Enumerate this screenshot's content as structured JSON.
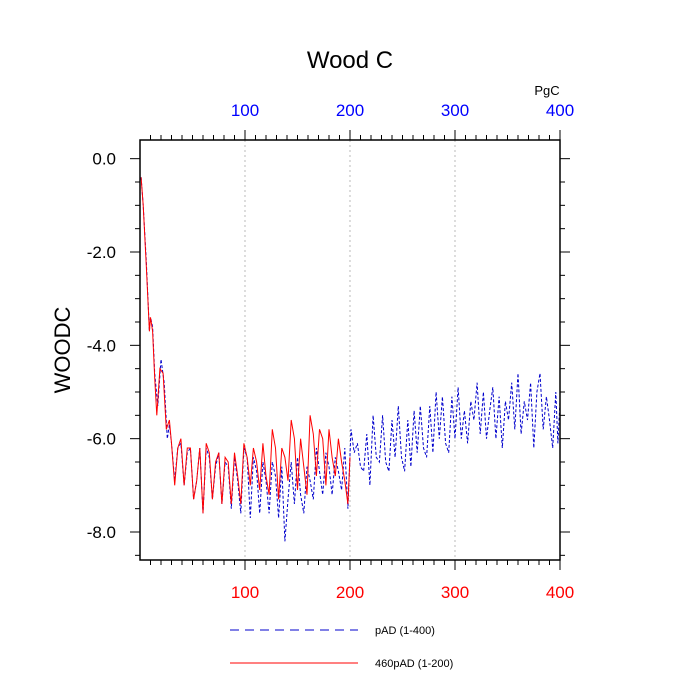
{
  "chart_data": {
    "type": "line",
    "title": "Wood C",
    "ylabel": "WOODC",
    "x_unit_label": "PgC",
    "xlim": [
      0,
      400
    ],
    "ylim": [
      -8.6,
      0.4
    ],
    "x_ticks": [
      100,
      200,
      300,
      400
    ],
    "y_ticks": [
      0.0,
      -2.0,
      -4.0,
      -6.0,
      -8.0
    ],
    "y_tick_labels": [
      "0.0",
      "-2.0",
      "-4.0",
      "-6.0",
      "-8.0"
    ],
    "top_tick_color": "#0000ff",
    "bottom_tick_color": "#ff0000",
    "grid": "vertical-dotted",
    "series": [
      {
        "name": "pAD (1-400)",
        "color": "#0000cc",
        "style": "dashed",
        "points": [
          [
            1,
            -0.4
          ],
          [
            3,
            -1.0
          ],
          [
            6,
            -2.2
          ],
          [
            9,
            -3.7
          ],
          [
            10,
            -3.4
          ],
          [
            12,
            -3.6
          ],
          [
            14,
            -4.6
          ],
          [
            17,
            -5.3
          ],
          [
            20,
            -4.3
          ],
          [
            23,
            -4.8
          ],
          [
            26,
            -6.0
          ],
          [
            28,
            -5.7
          ],
          [
            30,
            -6.1
          ],
          [
            33,
            -6.9
          ],
          [
            36,
            -6.2
          ],
          [
            39,
            -6.1
          ],
          [
            42,
            -7.0
          ],
          [
            45,
            -6.3
          ],
          [
            48,
            -6.2
          ],
          [
            51,
            -7.3
          ],
          [
            54,
            -6.9
          ],
          [
            57,
            -6.2
          ],
          [
            60,
            -7.6
          ],
          [
            63,
            -6.2
          ],
          [
            66,
            -6.4
          ],
          [
            69,
            -7.3
          ],
          [
            72,
            -6.6
          ],
          [
            75,
            -6.3
          ],
          [
            78,
            -7.4
          ],
          [
            81,
            -6.5
          ],
          [
            84,
            -6.6
          ],
          [
            87,
            -7.5
          ],
          [
            90,
            -6.4
          ],
          [
            93,
            -6.9
          ],
          [
            96,
            -7.6
          ],
          [
            99,
            -6.2
          ],
          [
            102,
            -6.4
          ],
          [
            105,
            -7.7
          ],
          [
            108,
            -6.4
          ],
          [
            111,
            -6.7
          ],
          [
            114,
            -7.6
          ],
          [
            117,
            -6.5
          ],
          [
            120,
            -6.9
          ],
          [
            123,
            -7.6
          ],
          [
            126,
            -6.5
          ],
          [
            129,
            -6.8
          ],
          [
            132,
            -7.7
          ],
          [
            135,
            -6.6
          ],
          [
            138,
            -8.2
          ],
          [
            141,
            -7.3
          ],
          [
            144,
            -6.5
          ],
          [
            147,
            -7.4
          ],
          [
            150,
            -6.4
          ],
          [
            153,
            -7.2
          ],
          [
            156,
            -7.6
          ],
          [
            159,
            -6.6
          ],
          [
            162,
            -6.9
          ],
          [
            165,
            -7.3
          ],
          [
            168,
            -6.2
          ],
          [
            171,
            -6.7
          ],
          [
            174,
            -7.2
          ],
          [
            177,
            -6.3
          ],
          [
            180,
            -6.6
          ],
          [
            183,
            -7.2
          ],
          [
            186,
            -6.4
          ],
          [
            189,
            -6.7
          ],
          [
            192,
            -7.1
          ],
          [
            195,
            -6.2
          ],
          [
            198,
            -7.5
          ],
          [
            201,
            -5.8
          ],
          [
            204,
            -6.3
          ],
          [
            207,
            -6.1
          ],
          [
            210,
            -6.6
          ],
          [
            213,
            -6.7
          ],
          [
            216,
            -5.9
          ],
          [
            219,
            -7.0
          ],
          [
            222,
            -5.5
          ],
          [
            225,
            -6.4
          ],
          [
            228,
            -6.5
          ],
          [
            231,
            -5.5
          ],
          [
            234,
            -6.5
          ],
          [
            237,
            -6.7
          ],
          [
            240,
            -5.6
          ],
          [
            243,
            -6.4
          ],
          [
            246,
            -5.3
          ],
          [
            249,
            -6.4
          ],
          [
            252,
            -6.7
          ],
          [
            255,
            -5.6
          ],
          [
            258,
            -6.6
          ],
          [
            261,
            -5.4
          ],
          [
            264,
            -6.3
          ],
          [
            267,
            -5.3
          ],
          [
            270,
            -6.2
          ],
          [
            273,
            -6.4
          ],
          [
            276,
            -5.3
          ],
          [
            279,
            -6.3
          ],
          [
            282,
            -5.0
          ],
          [
            285,
            -6.0
          ],
          [
            288,
            -5.1
          ],
          [
            291,
            -6.1
          ],
          [
            294,
            -6.3
          ],
          [
            297,
            -5.1
          ],
          [
            300,
            -6.0
          ],
          [
            303,
            -4.9
          ],
          [
            306,
            -6.0
          ],
          [
            309,
            -5.4
          ],
          [
            312,
            -6.1
          ],
          [
            315,
            -5.2
          ],
          [
            318,
            -5.6
          ],
          [
            321,
            -4.8
          ],
          [
            324,
            -5.9
          ],
          [
            327,
            -5.0
          ],
          [
            330,
            -6.0
          ],
          [
            333,
            -5.4
          ],
          [
            336,
            -4.9
          ],
          [
            339,
            -6.0
          ],
          [
            342,
            -5.1
          ],
          [
            345,
            -6.2
          ],
          [
            348,
            -5.2
          ],
          [
            351,
            -5.6
          ],
          [
            354,
            -4.8
          ],
          [
            357,
            -5.8
          ],
          [
            360,
            -4.6
          ],
          [
            363,
            -5.9
          ],
          [
            366,
            -5.2
          ],
          [
            369,
            -5.6
          ],
          [
            372,
            -4.8
          ],
          [
            375,
            -6.2
          ],
          [
            378,
            -5.0
          ],
          [
            381,
            -4.6
          ],
          [
            384,
            -5.8
          ],
          [
            387,
            -5.1
          ],
          [
            390,
            -5.6
          ],
          [
            393,
            -6.2
          ],
          [
            396,
            -5.0
          ],
          [
            398,
            -6.1
          ],
          [
            400,
            -5.2
          ]
        ]
      },
      {
        "name": "460pAD (1-200)",
        "color": "#ff0000",
        "style": "solid",
        "points": [
          [
            1,
            -0.4
          ],
          [
            3,
            -1.0
          ],
          [
            6,
            -2.3
          ],
          [
            9,
            -3.7
          ],
          [
            10,
            -3.4
          ],
          [
            12,
            -3.7
          ],
          [
            14,
            -4.7
          ],
          [
            16,
            -5.5
          ],
          [
            19,
            -4.5
          ],
          [
            22,
            -4.6
          ],
          [
            25,
            -5.8
          ],
          [
            28,
            -5.6
          ],
          [
            30,
            -6.1
          ],
          [
            33,
            -7.0
          ],
          [
            36,
            -6.2
          ],
          [
            39,
            -6.0
          ],
          [
            42,
            -7.0
          ],
          [
            45,
            -6.2
          ],
          [
            48,
            -6.2
          ],
          [
            51,
            -7.3
          ],
          [
            54,
            -6.9
          ],
          [
            57,
            -6.2
          ],
          [
            60,
            -7.6
          ],
          [
            63,
            -6.1
          ],
          [
            66,
            -6.3
          ],
          [
            69,
            -7.3
          ],
          [
            72,
            -6.5
          ],
          [
            75,
            -6.3
          ],
          [
            78,
            -7.4
          ],
          [
            81,
            -6.4
          ],
          [
            84,
            -6.5
          ],
          [
            87,
            -7.4
          ],
          [
            90,
            -6.3
          ],
          [
            93,
            -6.8
          ],
          [
            96,
            -7.4
          ],
          [
            99,
            -6.1
          ],
          [
            102,
            -6.4
          ],
          [
            105,
            -7.0
          ],
          [
            108,
            -6.2
          ],
          [
            111,
            -6.5
          ],
          [
            114,
            -7.1
          ],
          [
            117,
            -6.1
          ],
          [
            120,
            -6.8
          ],
          [
            123,
            -7.2
          ],
          [
            126,
            -5.8
          ],
          [
            129,
            -6.2
          ],
          [
            132,
            -7.3
          ],
          [
            135,
            -6.2
          ],
          [
            138,
            -6.4
          ],
          [
            141,
            -6.9
          ],
          [
            144,
            -5.6
          ],
          [
            147,
            -6.0
          ],
          [
            150,
            -7.1
          ],
          [
            153,
            -6.0
          ],
          [
            156,
            -6.6
          ],
          [
            159,
            -7.2
          ],
          [
            162,
            -5.5
          ],
          [
            165,
            -5.9
          ],
          [
            168,
            -6.8
          ],
          [
            171,
            -5.8
          ],
          [
            174,
            -6.0
          ],
          [
            177,
            -7.0
          ],
          [
            180,
            -5.8
          ],
          [
            183,
            -6.4
          ],
          [
            186,
            -6.8
          ],
          [
            189,
            -6.0
          ],
          [
            192,
            -6.5
          ],
          [
            195,
            -6.9
          ],
          [
            198,
            -7.4
          ],
          [
            200,
            -6.4
          ]
        ]
      }
    ]
  }
}
